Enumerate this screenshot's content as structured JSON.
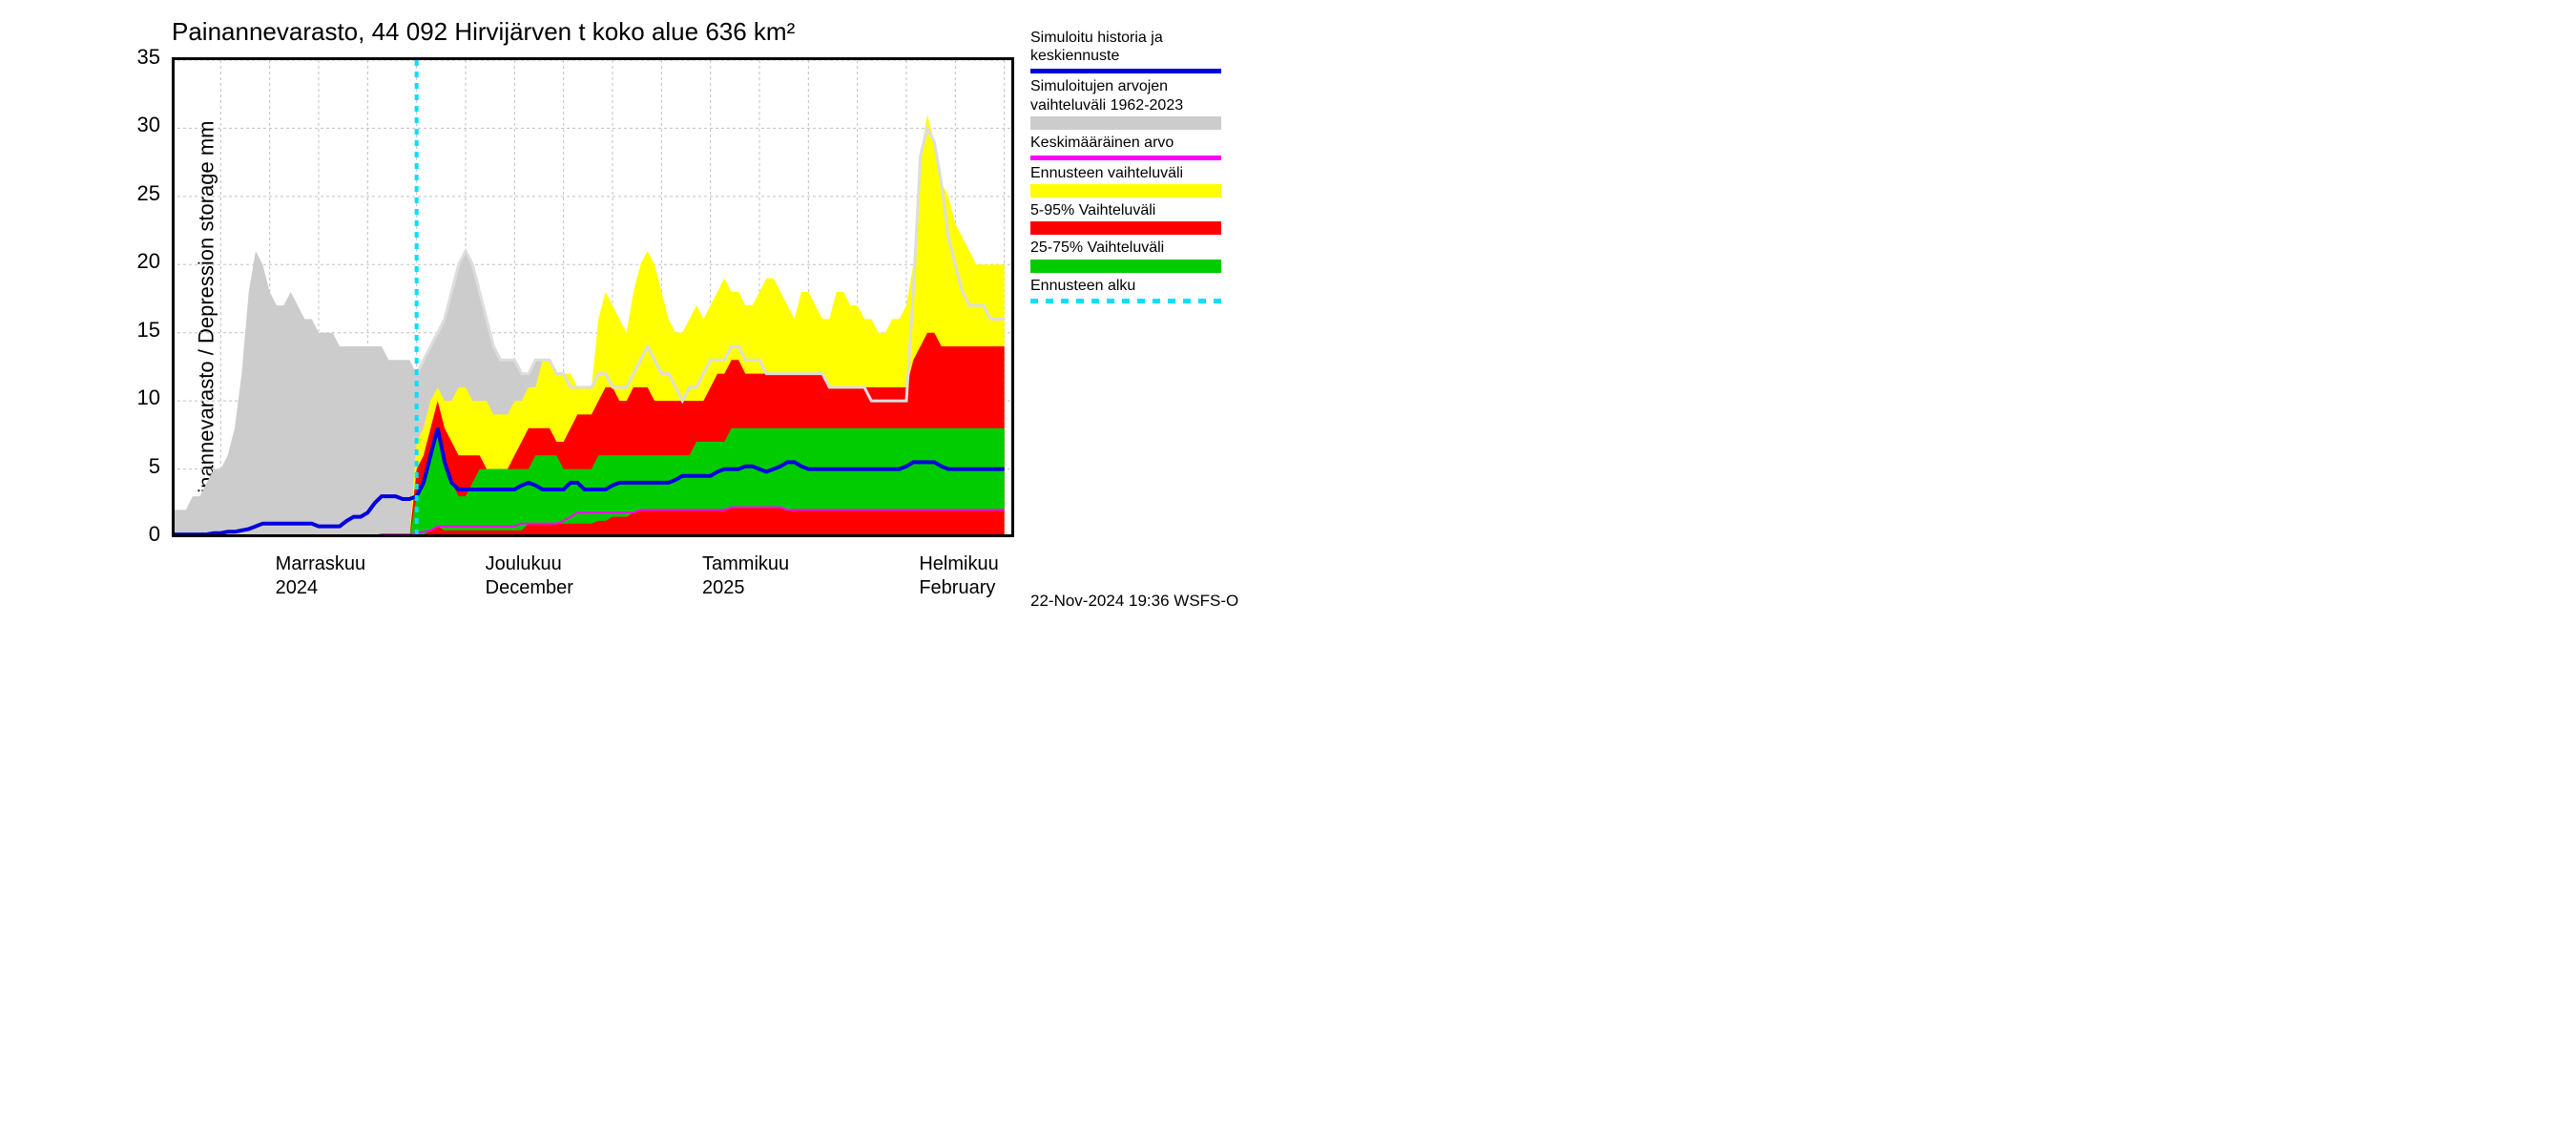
{
  "chart": {
    "type": "area+line",
    "title": "Painannevarasto, 44 092 Hirvijärven t koko alue 636 km²",
    "ylabel": "Painannevarasto / Depression storage     mm",
    "background_color": "#ffffff",
    "axis_color": "#000000",
    "grid_color": "#c0c0c0",
    "grid_dash": "3,3",
    "title_fontsize": 26,
    "label_fontsize": 22,
    "tick_fontsize": 22,
    "ylim": [
      0,
      35
    ],
    "yticks": [
      0,
      5,
      10,
      15,
      20,
      25,
      30,
      35
    ],
    "xlim": [
      0,
      120
    ],
    "xticks_major": [
      {
        "pos": 14,
        "label1": "Marraskuu",
        "label2": "2024"
      },
      {
        "pos": 44,
        "label1": "Joulukuu",
        "label2": "December"
      },
      {
        "pos": 75,
        "label1": "Tammikuu",
        "label2": "2025"
      },
      {
        "pos": 106,
        "label1": "Helmikuu",
        "label2": "February"
      }
    ],
    "xticks_minor_step": 7,
    "forecast_start_x": 35,
    "forecast_line_color": "#00e0ff",
    "forecast_line_dash": "6,6",
    "forecast_line_width": 4,
    "series": {
      "gray_band": {
        "color": "#cccccc",
        "upper": [
          2,
          2,
          2,
          3,
          3,
          4,
          5,
          5,
          6,
          8,
          12,
          18,
          21,
          20,
          18,
          17,
          17,
          18,
          17,
          16,
          16,
          15,
          15,
          15,
          14,
          14,
          14,
          14,
          14,
          14,
          14,
          13,
          13,
          13,
          13,
          12,
          13,
          14,
          15,
          16,
          18,
          20,
          21,
          20,
          18,
          16,
          14,
          13,
          13,
          13,
          12,
          12,
          13,
          13,
          13,
          12,
          12,
          11,
          11,
          11,
          11,
          12,
          12,
          11,
          11,
          11,
          12,
          13,
          14,
          13,
          12,
          12,
          11,
          10,
          11,
          11,
          12,
          13,
          13,
          13,
          14,
          14,
          13,
          13,
          13,
          12,
          12,
          12,
          12,
          12,
          12,
          12,
          12,
          12,
          11,
          11,
          11,
          11,
          11,
          11,
          10,
          10,
          10,
          10,
          10,
          10,
          18,
          28,
          30,
          29,
          26,
          22,
          20,
          18,
          17,
          17,
          17,
          16,
          16,
          16
        ],
        "lower_is_zero": true
      },
      "yellow_band": {
        "color": "#ffff00",
        "upper": [
          0,
          0,
          0,
          0,
          0,
          0,
          0,
          0,
          0,
          0,
          0,
          0,
          0,
          0,
          0,
          0,
          0,
          0,
          0,
          0,
          0,
          0,
          0,
          0,
          0,
          0,
          0,
          0,
          0,
          0,
          0,
          0,
          0,
          0,
          0,
          7,
          8,
          10,
          11,
          10,
          10,
          11,
          11,
          10,
          10,
          10,
          9,
          9,
          9,
          10,
          10,
          11,
          11,
          13,
          13,
          12,
          12,
          12,
          11,
          11,
          11,
          16,
          18,
          17,
          16,
          15,
          18,
          20,
          21,
          20,
          18,
          16,
          15,
          15,
          16,
          17,
          16,
          17,
          18,
          19,
          18,
          18,
          17,
          17,
          18,
          19,
          19,
          18,
          17,
          16,
          18,
          18,
          17,
          16,
          16,
          18,
          18,
          17,
          17,
          16,
          16,
          15,
          15,
          16,
          16,
          17,
          20,
          28,
          31,
          29,
          26,
          25,
          23,
          22,
          21,
          20,
          20,
          20,
          20,
          20
        ],
        "lower_is_zero": true
      },
      "red_band": {
        "color": "#ff0000",
        "upper": [
          0,
          0,
          0,
          0,
          0,
          0,
          0,
          0,
          0,
          0,
          0,
          0,
          0,
          0,
          0,
          0,
          0,
          0,
          0,
          0,
          0,
          0,
          0,
          0,
          0,
          0,
          0,
          0,
          0,
          0,
          0,
          0,
          0,
          0,
          0,
          5,
          6,
          8,
          10,
          8,
          7,
          6,
          6,
          6,
          6,
          5,
          5,
          5,
          5,
          6,
          7,
          8,
          8,
          8,
          8,
          7,
          7,
          8,
          9,
          9,
          9,
          10,
          11,
          11,
          10,
          10,
          11,
          11,
          11,
          10,
          10,
          10,
          10,
          10,
          10,
          10,
          10,
          11,
          12,
          12,
          13,
          13,
          12,
          12,
          12,
          12,
          12,
          12,
          12,
          12,
          12,
          12,
          12,
          12,
          11,
          11,
          11,
          11,
          11,
          11,
          11,
          11,
          11,
          11,
          11,
          11,
          13,
          14,
          15,
          15,
          14,
          14,
          14,
          14,
          14,
          14,
          14,
          14,
          14,
          14
        ],
        "lower_is_zero": true
      },
      "green_band": {
        "color": "#00cc00",
        "upper": [
          0,
          0,
          0,
          0,
          0,
          0,
          0,
          0,
          0,
          0,
          0,
          0,
          0,
          0,
          0,
          0,
          0,
          0,
          0,
          0,
          0,
          0,
          0,
          0,
          0,
          0,
          0,
          0,
          0,
          0,
          0,
          0,
          0,
          0,
          0,
          3,
          4,
          6,
          8,
          6,
          4,
          3,
          3,
          4,
          5,
          5,
          5,
          5,
          5,
          5,
          5,
          5,
          6,
          6,
          6,
          6,
          5,
          5,
          5,
          5,
          5,
          6,
          6,
          6,
          6,
          6,
          6,
          6,
          6,
          6,
          6,
          6,
          6,
          6,
          6,
          7,
          7,
          7,
          7,
          7,
          8,
          8,
          8,
          8,
          8,
          8,
          8,
          8,
          8,
          8,
          8,
          8,
          8,
          8,
          8,
          8,
          8,
          8,
          8,
          8,
          8,
          8,
          8,
          8,
          8,
          8,
          8,
          8,
          8,
          8,
          8,
          8,
          8,
          8,
          8,
          8,
          8,
          8,
          8,
          8
        ],
        "lower": [
          0,
          0,
          0,
          0,
          0,
          0,
          0,
          0,
          0,
          0,
          0,
          0,
          0,
          0,
          0,
          0,
          0,
          0,
          0,
          0,
          0,
          0,
          0,
          0,
          0,
          0,
          0,
          0,
          0,
          0,
          0,
          0,
          0,
          0,
          0,
          0,
          0.2,
          0.5,
          0.8,
          0.5,
          0.5,
          0.5,
          0.5,
          0.5,
          0.5,
          0.5,
          0.5,
          0.5,
          0.5,
          0.5,
          0.5,
          1,
          1,
          1,
          1,
          1,
          1,
          1,
          1,
          1,
          1,
          1.2,
          1.2,
          1.5,
          1.5,
          1.5,
          1.8,
          2,
          2,
          2,
          2,
          2,
          2,
          2,
          2,
          2,
          2,
          2,
          2,
          2,
          2.2,
          2.2,
          2.2,
          2.2,
          2.2,
          2.2,
          2.2,
          2.2,
          2,
          2,
          2,
          2,
          2,
          2,
          2,
          2,
          2,
          2,
          2,
          2,
          2,
          2,
          2,
          2,
          2,
          2,
          2,
          2,
          2,
          2,
          2,
          2,
          2,
          2,
          2,
          2,
          2,
          2,
          2,
          2
        ]
      },
      "blue_line": {
        "color": "#0000dd",
        "width": 4,
        "values": [
          0.2,
          0.2,
          0.2,
          0.2,
          0.2,
          0.2,
          0.3,
          0.3,
          0.4,
          0.4,
          0.5,
          0.6,
          0.8,
          1,
          1,
          1,
          1,
          1,
          1,
          1,
          1,
          0.8,
          0.8,
          0.8,
          0.8,
          1.2,
          1.5,
          1.5,
          1.8,
          2.5,
          3,
          3,
          3,
          2.8,
          2.8,
          3,
          4,
          6,
          8,
          5.5,
          4,
          3.5,
          3.5,
          3.5,
          3.5,
          3.5,
          3.5,
          3.5,
          3.5,
          3.5,
          3.8,
          4,
          3.8,
          3.5,
          3.5,
          3.5,
          3.5,
          4,
          4,
          3.5,
          3.5,
          3.5,
          3.5,
          3.8,
          4,
          4,
          4,
          4,
          4,
          4,
          4,
          4,
          4.2,
          4.5,
          4.5,
          4.5,
          4.5,
          4.5,
          4.8,
          5,
          5,
          5,
          5.2,
          5.2,
          5,
          4.8,
          5,
          5.2,
          5.5,
          5.5,
          5.2,
          5,
          5,
          5,
          5,
          5,
          5,
          5,
          5,
          5,
          5,
          5,
          5,
          5,
          5,
          5.2,
          5.5,
          5.5,
          5.5,
          5.5,
          5.2,
          5,
          5,
          5,
          5,
          5,
          5,
          5,
          5,
          5
        ]
      },
      "magenta_line": {
        "color": "#ff00ff",
        "width": 2,
        "values": [
          0.1,
          0.1,
          0.1,
          0.1,
          0.1,
          0.1,
          0.1,
          0.1,
          0.1,
          0.1,
          0.1,
          0.1,
          0.1,
          0.1,
          0.1,
          0.1,
          0.1,
          0.1,
          0.1,
          0.1,
          0.1,
          0.1,
          0.1,
          0.1,
          0.1,
          0.1,
          0.1,
          0.1,
          0.1,
          0.1,
          0.2,
          0.2,
          0.2,
          0.2,
          0.2,
          0.3,
          0.4,
          0.5,
          0.8,
          0.8,
          0.8,
          0.8,
          0.8,
          0.8,
          0.8,
          0.8,
          0.8,
          0.8,
          0.8,
          0.8,
          1,
          1,
          1,
          1,
          1,
          1,
          1.2,
          1.5,
          1.8,
          1.8,
          1.8,
          1.8,
          1.8,
          1.8,
          1.8,
          1.8,
          1.8,
          2,
          2,
          2,
          2,
          2,
          2,
          2,
          2,
          2,
          2,
          2,
          2,
          2,
          2.2,
          2.2,
          2.2,
          2.2,
          2.2,
          2.2,
          2.2,
          2.2,
          2,
          2,
          2,
          2,
          2,
          2,
          2,
          2,
          2,
          2,
          2,
          2,
          2,
          2,
          2,
          2,
          2,
          2,
          2,
          2,
          2,
          2,
          2,
          2,
          2,
          2,
          2,
          2,
          2,
          2,
          2,
          2
        ]
      },
      "gray_line_upper": {
        "color": "#cccccc",
        "width": 3,
        "values": null
      }
    }
  },
  "legend": {
    "items": [
      {
        "text": "Simuloitu historia ja keskiennuste",
        "type": "line",
        "color": "#0000dd"
      },
      {
        "text": "Simuloitujen arvojen vaihteluväli 1962-2023",
        "type": "block",
        "color": "#cccccc"
      },
      {
        "text": "Keskimääräinen arvo",
        "type": "line",
        "color": "#ff00ff"
      },
      {
        "text": "Ennusteen vaihteluväli",
        "type": "block",
        "color": "#ffff00"
      },
      {
        "text": "5-95% Vaihteluväli",
        "type": "block",
        "color": "#ff0000"
      },
      {
        "text": "25-75% Vaihteluväli",
        "type": "block",
        "color": "#00cc00"
      },
      {
        "text": "Ennusteen alku",
        "type": "dash",
        "color": "#00e0ff"
      }
    ]
  },
  "footer": "22-Nov-2024 19:36 WSFS-O"
}
